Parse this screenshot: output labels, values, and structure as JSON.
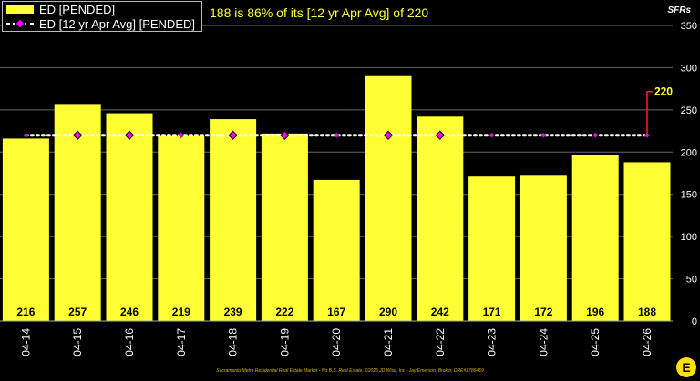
{
  "legend": {
    "bar_label": "ED [PENDED]",
    "avg_label": "ED [12 yr Apr Avg] [PENDED]"
  },
  "headline": "188 is 86% of its [12 yr Apr Avg] of 220",
  "unit_label": "SFRs",
  "footer": "Sacramento Metro Residential Real Estate Market - No B.S. Real Estate, ©2026 JD Wise, Inc - Jay Emerson, Broker, DRE#1786469",
  "logo_text": "E",
  "colors": {
    "bar": "#ffff33",
    "avg_dots": "#ffffff",
    "markers": "#ff00ff",
    "callout": "#ff2020",
    "callout_text": "#ffff33"
  },
  "chart_data": {
    "type": "bar",
    "categories": [
      "04-14",
      "04-15",
      "04-16",
      "04-17",
      "04-18",
      "04-19",
      "04-20",
      "04-21",
      "04-22",
      "04-23",
      "04-24",
      "04-25",
      "04-26"
    ],
    "series": [
      {
        "name": "ED [PENDED]",
        "values": [
          216,
          257,
          246,
          219,
          239,
          222,
          167,
          290,
          242,
          171,
          172,
          196,
          188
        ]
      },
      {
        "name": "ED [12 yr Apr Avg] [PENDED]",
        "values": [
          220,
          220,
          220,
          220,
          220,
          220,
          220,
          220,
          220,
          220,
          220,
          220,
          220
        ]
      }
    ],
    "avg_value": 220,
    "avg_label": "220",
    "ylim": [
      0,
      350
    ],
    "yticks": [
      0,
      50,
      100,
      150,
      200,
      250,
      300,
      350
    ],
    "grid": true,
    "legend_position": "top-left"
  }
}
